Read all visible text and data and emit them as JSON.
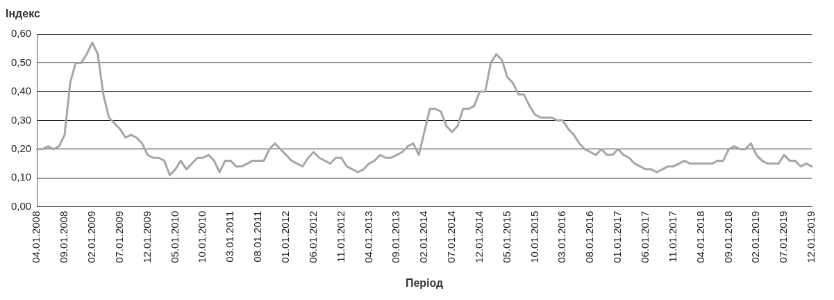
{
  "chart_data": {
    "type": "line",
    "ylabel": "Індекс",
    "xlabel": "Період",
    "categories": [
      "04.01.2008",
      null,
      null,
      null,
      null,
      "09.01.2008",
      null,
      null,
      null,
      null,
      "02.01.2009",
      null,
      null,
      null,
      null,
      "07.01.2009",
      null,
      null,
      null,
      null,
      "12.01.2009",
      null,
      null,
      null,
      null,
      "05.01.2010",
      null,
      null,
      null,
      null,
      "10.01.2010",
      null,
      null,
      null,
      null,
      "03.01.2011",
      null,
      null,
      null,
      null,
      "08.01.2011",
      null,
      null,
      null,
      null,
      "01.01.2012",
      null,
      null,
      null,
      null,
      "06.01.2012",
      null,
      null,
      null,
      null,
      "11.01.2012",
      null,
      null,
      null,
      null,
      "04.01.2013",
      null,
      null,
      null,
      null,
      "09.01.2013",
      null,
      null,
      null,
      null,
      "02.01.2014",
      null,
      null,
      null,
      null,
      "07.01.2014",
      null,
      null,
      null,
      null,
      "12.01.2014",
      null,
      null,
      null,
      null,
      "05.01.2015",
      null,
      null,
      null,
      null,
      "10.01.2015",
      null,
      null,
      null,
      null,
      "03.01.2016",
      null,
      null,
      null,
      null,
      "08.01.2016",
      null,
      null,
      null,
      null,
      "01.01.2017",
      null,
      null,
      null,
      null,
      "06.01.2017",
      null,
      null,
      null,
      null,
      "11.01.2017",
      null,
      null,
      null,
      null,
      "04.01.2018",
      null,
      null,
      null,
      null,
      "09.01.2018",
      null,
      null,
      null,
      null,
      "02.01.2019",
      null,
      null,
      null,
      null,
      "07.01.2019",
      null,
      null,
      null,
      null,
      "12.01.2019"
    ],
    "series": [
      {
        "color": "#a6a6a6",
        "values": [
          0.2,
          0.2,
          0.21,
          0.2,
          0.21,
          0.25,
          0.43,
          0.5,
          0.5,
          0.53,
          0.57,
          0.53,
          0.39,
          0.31,
          0.29,
          0.27,
          0.24,
          0.25,
          0.24,
          0.22,
          0.18,
          0.17,
          0.17,
          0.16,
          0.11,
          0.13,
          0.16,
          0.13,
          0.15,
          0.17,
          0.17,
          0.18,
          0.16,
          0.12,
          0.16,
          0.16,
          0.14,
          0.14,
          0.15,
          0.16,
          0.16,
          0.16,
          0.2,
          0.22,
          0.2,
          0.18,
          0.16,
          0.15,
          0.14,
          0.17,
          0.19,
          0.17,
          0.16,
          0.15,
          0.17,
          0.17,
          0.14,
          0.13,
          0.12,
          0.13,
          0.15,
          0.16,
          0.18,
          0.17,
          0.17,
          0.18,
          0.19,
          0.21,
          0.22,
          0.18,
          0.26,
          0.34,
          0.34,
          0.33,
          0.28,
          0.26,
          0.28,
          0.34,
          0.34,
          0.35,
          0.4,
          0.4,
          0.5,
          0.53,
          0.51,
          0.45,
          0.43,
          0.39,
          0.39,
          0.35,
          0.32,
          0.31,
          0.31,
          0.31,
          0.3,
          0.3,
          0.27,
          0.25,
          0.22,
          0.2,
          0.19,
          0.18,
          0.2,
          0.18,
          0.18,
          0.2,
          0.18,
          0.17,
          0.15,
          0.14,
          0.13,
          0.13,
          0.12,
          0.13,
          0.14,
          0.14,
          0.15,
          0.16,
          0.15,
          0.15,
          0.15,
          0.15,
          0.15,
          0.16,
          0.16,
          0.2,
          0.21,
          0.2,
          0.2,
          0.22,
          0.18,
          0.16,
          0.15,
          0.15,
          0.15,
          0.18,
          0.16,
          0.16,
          0.14,
          0.15,
          0.14
        ]
      }
    ],
    "ylim": [
      0,
      0.6
    ],
    "yticks": [
      {
        "value": 0,
        "label": "0,00"
      },
      {
        "value": 0.1,
        "label": "0,10"
      },
      {
        "value": 0.2,
        "label": "0,20"
      },
      {
        "value": 0.3,
        "label": "0,30"
      },
      {
        "value": 0.4,
        "label": "0,40"
      },
      {
        "value": 0.5,
        "label": "0,50"
      },
      {
        "value": 0.6,
        "label": "0,60"
      }
    ],
    "grid": "y",
    "marker": "none",
    "line_style": "solid"
  }
}
